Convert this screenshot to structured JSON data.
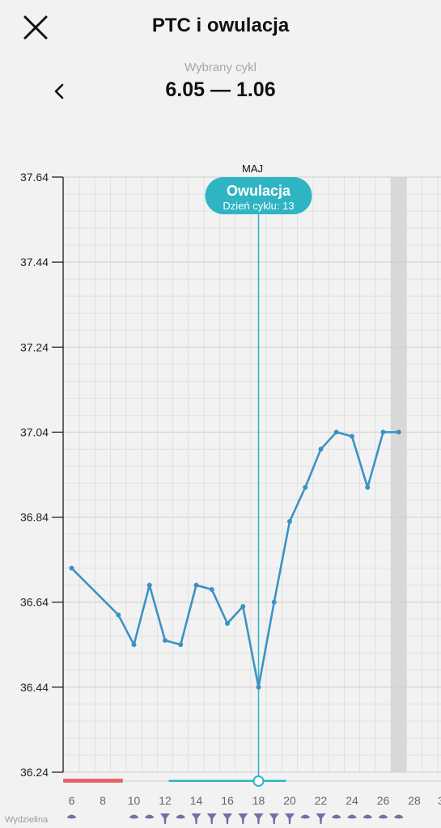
{
  "header": {
    "title": "PTC i owulacja",
    "close_icon": "close-icon",
    "cycle_label": "Wybrany cykl",
    "cycle_range": "6.05 — 1.06",
    "prev_icon": "chevron-left-icon"
  },
  "chart_data": {
    "type": "line",
    "month_label": "MAJ",
    "yticks": [
      "37.64",
      "37.44",
      "37.24",
      "37.04",
      "36.84",
      "36.64",
      "36.44",
      "36.24"
    ],
    "ylim": [
      36.24,
      37.64
    ],
    "xlim": [
      6,
      28
    ],
    "xticks": [
      "6",
      "8",
      "10",
      "12",
      "14",
      "16",
      "18",
      "20",
      "22",
      "24",
      "26",
      "28"
    ],
    "series": [
      {
        "x": [
          6,
          9,
          10,
          11,
          12,
          13,
          14,
          15,
          16,
          17,
          18,
          19,
          20,
          21,
          22,
          23,
          24,
          25,
          26,
          27
        ],
        "y": [
          36.72,
          36.61,
          36.54,
          36.68,
          36.55,
          36.54,
          36.68,
          36.67,
          36.59,
          36.63,
          36.44,
          36.64,
          36.83,
          36.91,
          37.0,
          37.04,
          37.03,
          36.91,
          37.04,
          37.04
        ]
      }
    ],
    "ovulation": {
      "day": 18,
      "title": "Owulacja",
      "subtitle": "Dzień cyklu: 13"
    },
    "highlight_day": 27,
    "period_bar": {
      "start": 5.5,
      "end": 9.5
    },
    "fertile_bar": {
      "start": 12.5,
      "end": 19.5
    },
    "bottom_row_label": "Wydzielina",
    "colors": {
      "line": "#3b93c4",
      "ovulation": "#2fb4c3",
      "period": "#e8666a",
      "grid": "#dcdcdc",
      "highlight": "#d8d8d8",
      "discharge": "#7b6aa8"
    }
  }
}
